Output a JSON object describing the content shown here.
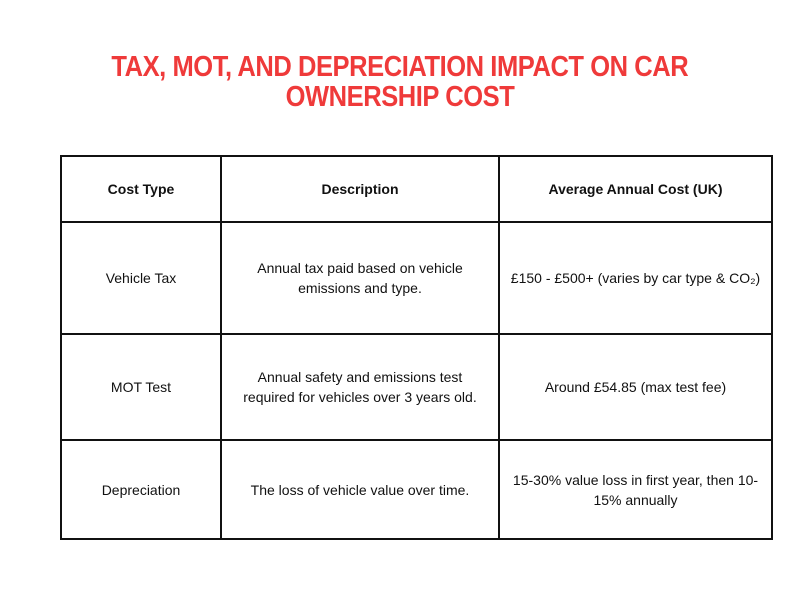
{
  "title": {
    "line1": "TAX, MOT, AND DEPRECIATION IMPACT ON CAR",
    "line2": "OWNERSHIP COST"
  },
  "table": {
    "headers": [
      "Cost Type",
      "Description",
      "Average Annual Cost (UK)"
    ],
    "rows": [
      [
        "Vehicle Tax",
        "Annual tax paid based on vehicle emissions and type.",
        "£150 - £500+ (varies by car type & CO₂)"
      ],
      [
        "MOT Test",
        "Annual safety and emissions test required for vehicles over 3 years old.",
        "Around £54.85 (max test fee)"
      ],
      [
        "Depreciation",
        "The loss of vehicle value over time.",
        "15-30% value loss in first year, then 10-15% annually"
      ]
    ]
  },
  "colors": {
    "title": "#ef3a3a",
    "border": "#111111"
  }
}
